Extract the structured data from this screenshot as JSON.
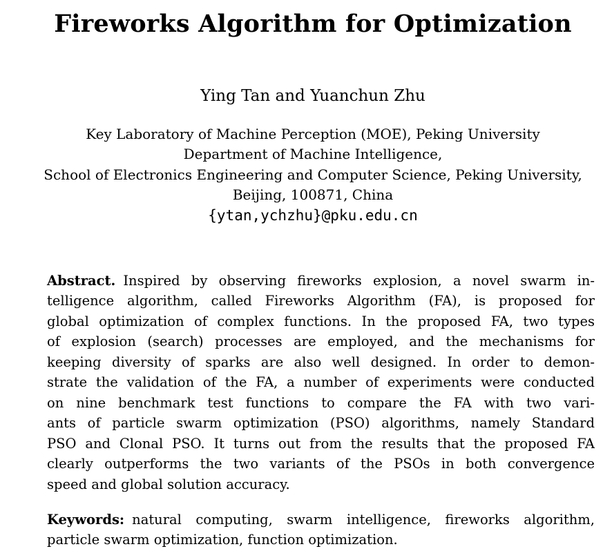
{
  "paper": {
    "title": "Fireworks Algorithm for Optimization",
    "authors": "Ying Tan and Yuanchun Zhu",
    "institute": {
      "lines": [
        "Key Laboratory of Machine Perception (MOE), Peking University",
        "Department of Machine Intelligence,",
        "School of Electronics Engineering and Computer Science, Peking University,",
        "Beijing, 100871, China"
      ],
      "email": "{ytan,ychzhu}@pku.edu.cn"
    },
    "abstract": {
      "label": "Abstract.",
      "lines": [
        "Inspired by observing fireworks explosion, a novel swarm in-",
        "telligence algorithm, called Fireworks Algorithm (FA), is proposed for",
        "global optimization of complex functions. In the proposed FA, two types",
        "of explosion (search) processes are employed, and the mechanisms for",
        "keeping diversity of sparks are also well designed. In order to demon-",
        "strate the validation of the FA, a number of experiments were conducted",
        "on nine benchmark test functions to compare the FA with two vari-",
        "ants of particle swarm optimization (PSO) algorithms, namely Standard",
        "PSO and Clonal PSO. It turns out from the results that the proposed FA",
        "clearly outperforms the two variants of the PSOs in both convergence",
        "speed and global solution accuracy."
      ]
    },
    "keywords": {
      "label": "Keywords:",
      "lines": [
        "natural computing, swarm intelligence, fireworks algorithm,",
        "particle swarm optimization, function optimization."
      ]
    }
  }
}
